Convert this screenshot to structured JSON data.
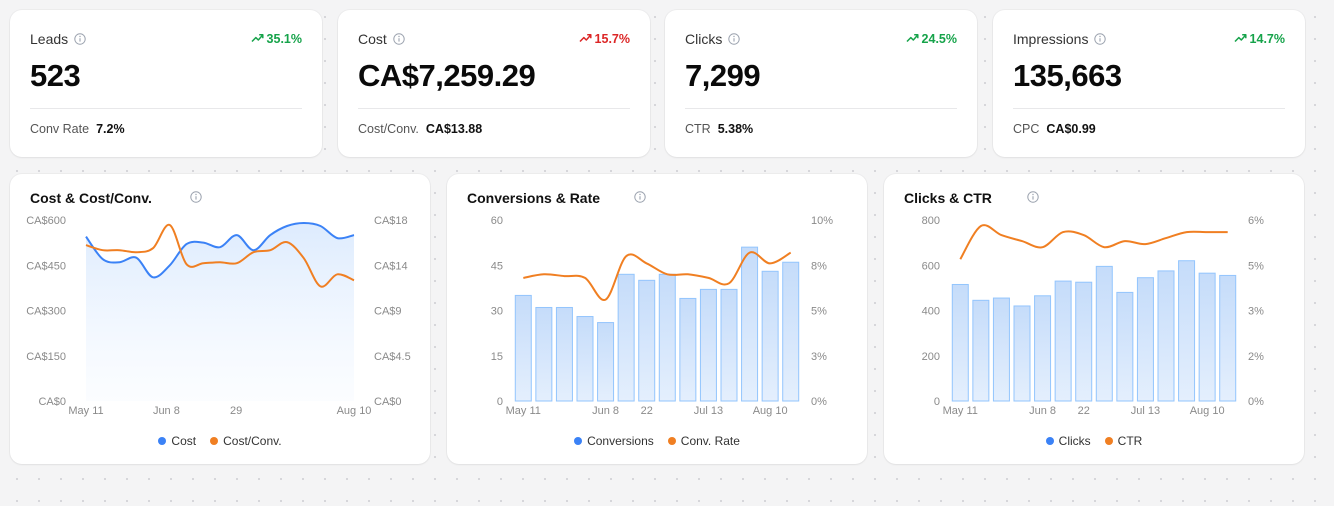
{
  "colors": {
    "primary": "#3b82f6",
    "secondary": "#f07f22",
    "bar_fill": "#cfe3fb",
    "bar_stroke": "#93c5fd",
    "up": "#16a34a",
    "down": "#dc2626"
  },
  "kpis": [
    {
      "title": "Leads",
      "value": "523",
      "change": "35.1%",
      "direction": "up",
      "foot_label": "Conv Rate",
      "foot_value": "7.2%"
    },
    {
      "title": "Cost",
      "value": "CA$7,259.29",
      "change": "15.7%",
      "direction": "down",
      "foot_label": "Cost/Conv.",
      "foot_value": "CA$13.88"
    },
    {
      "title": "Clicks",
      "value": "7,299",
      "change": "24.5%",
      "direction": "up",
      "foot_label": "CTR",
      "foot_value": "5.38%"
    },
    {
      "title": "Impressions",
      "value": "135,663",
      "change": "14.7%",
      "direction": "up",
      "foot_label": "CPC",
      "foot_value": "CA$0.99"
    }
  ],
  "chart_data": [
    {
      "type": "area",
      "title": "Cost & Cost/Conv.",
      "x_tick_labels": [
        "May 11",
        "Jun 8",
        "29",
        "Aug 10"
      ],
      "y_left": {
        "range": [
          0,
          600
        ],
        "ticks": [
          "CA$0",
          "CA$150",
          "CA$300",
          "CA$450",
          "CA$600"
        ]
      },
      "y_right": {
        "range": [
          0,
          18
        ],
        "ticks": [
          "CA$0",
          "CA$4.5",
          "CA$9",
          "CA$14",
          "CA$18"
        ]
      },
      "grid": false,
      "legend_position": "bottom",
      "series": [
        {
          "name": "Cost",
          "kind": "area",
          "axis": "left",
          "values": [
            545,
            470,
            460,
            475,
            410,
            450,
            520,
            525,
            510,
            550,
            500,
            550,
            580,
            590,
            580,
            540,
            550
          ]
        },
        {
          "name": "Cost/Conv.",
          "kind": "line",
          "axis": "right",
          "values": [
            15.5,
            15.0,
            15.0,
            14.8,
            15.2,
            17.5,
            13.6,
            13.7,
            13.8,
            13.7,
            14.8,
            15.0,
            15.8,
            14.2,
            11.4,
            12.6,
            12.0
          ]
        }
      ]
    },
    {
      "type": "bar",
      "title": "Conversions & Rate",
      "x_tick_labels": [
        "May 11",
        "Jun 8",
        "22",
        "Jul 13",
        "Aug 10"
      ],
      "y_left": {
        "range": [
          0,
          60
        ],
        "ticks": [
          "0",
          "15",
          "30",
          "45",
          "60"
        ]
      },
      "y_right": {
        "range": [
          0,
          10
        ],
        "ticks": [
          "0%",
          "3%",
          "5%",
          "8%",
          "10%"
        ]
      },
      "grid": false,
      "legend_position": "bottom",
      "series": [
        {
          "name": "Conversions",
          "kind": "bar",
          "axis": "left",
          "values": [
            35,
            31,
            31,
            28,
            26,
            42,
            40,
            42,
            34,
            37,
            37,
            51,
            43,
            46
          ]
        },
        {
          "name": "Conv. Rate",
          "kind": "line",
          "axis": "right",
          "values": [
            6.8,
            7.0,
            6.9,
            6.8,
            5.6,
            8.0,
            7.6,
            7.0,
            7.0,
            6.8,
            6.5,
            8.2,
            7.6,
            8.2
          ]
        }
      ]
    },
    {
      "type": "bar",
      "title": "Clicks & CTR",
      "x_tick_labels": [
        "May 11",
        "Jun 8",
        "22",
        "Jul 13",
        "Aug 10"
      ],
      "y_left": {
        "range": [
          0,
          800
        ],
        "ticks": [
          "0",
          "200",
          "400",
          "600",
          "800"
        ]
      },
      "y_right": {
        "range": [
          0,
          6
        ],
        "ticks": [
          "0%",
          "2%",
          "3%",
          "5%",
          "6%"
        ]
      },
      "grid": false,
      "legend_position": "bottom",
      "series": [
        {
          "name": "Clicks",
          "kind": "bar",
          "axis": "left",
          "values": [
            515,
            445,
            455,
            420,
            465,
            530,
            525,
            595,
            480,
            545,
            575,
            620,
            565,
            555
          ]
        },
        {
          "name": "CTR",
          "kind": "line",
          "axis": "right",
          "values": [
            4.7,
            5.8,
            5.5,
            5.3,
            5.1,
            5.6,
            5.5,
            5.1,
            5.3,
            5.2,
            5.4,
            5.6,
            5.6,
            5.6
          ]
        }
      ]
    }
  ]
}
